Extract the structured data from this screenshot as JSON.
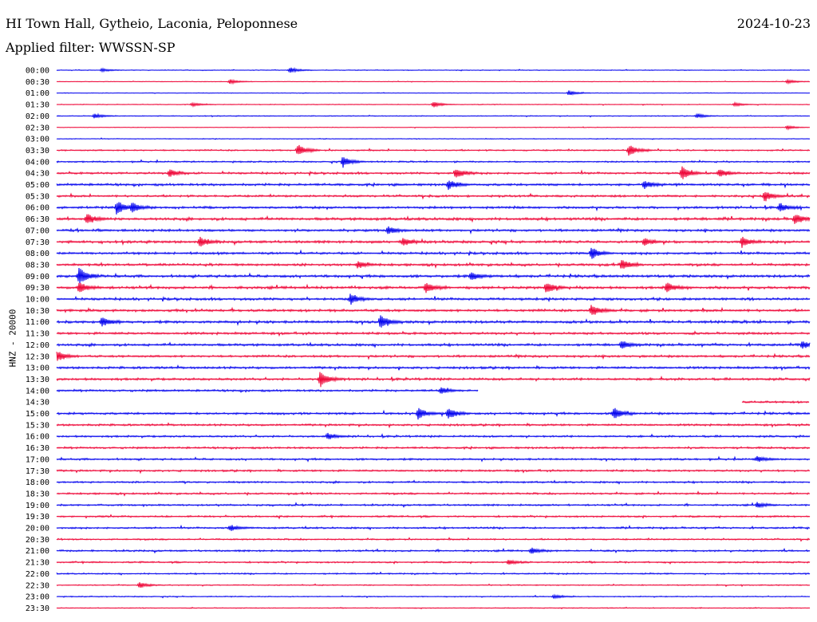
{
  "header": {
    "title": "HI Town Hall, Gytheio, Laconia, Peloponnese",
    "filter": "Applied filter: WWSSN-SP",
    "date": "2024-10-23"
  },
  "chart_data": {
    "type": "line",
    "title": "HI Town Hall, Gytheio, Laconia, Peloponnese",
    "subtitle": "Applied filter: WWSSN-SP",
    "ylabel": "HNZ - 20000",
    "xlabel": "",
    "colors": [
      "#0000ee",
      "#ee0033"
    ],
    "grid": false,
    "legend": "none",
    "rows": [
      {
        "time": "00:00",
        "color": "blue",
        "level": 0.25,
        "start": 0,
        "end": 1,
        "events": [
          [
            0.06,
            0.4
          ],
          [
            0.31,
            0.7
          ]
        ]
      },
      {
        "time": "00:30",
        "color": "red",
        "level": 0.2,
        "start": 0,
        "end": 1,
        "events": [
          [
            0.23,
            0.6
          ],
          [
            0.97,
            0.5
          ]
        ]
      },
      {
        "time": "01:00",
        "color": "blue",
        "level": 0.2,
        "start": 0,
        "end": 1,
        "events": [
          [
            0.68,
            0.6
          ]
        ]
      },
      {
        "time": "01:30",
        "color": "red",
        "level": 0.25,
        "start": 0,
        "end": 1,
        "events": [
          [
            0.18,
            0.5
          ],
          [
            0.5,
            0.7
          ],
          [
            0.9,
            0.5
          ]
        ]
      },
      {
        "time": "02:00",
        "color": "blue",
        "level": 0.3,
        "start": 0,
        "end": 1,
        "events": [
          [
            0.05,
            0.6
          ],
          [
            0.85,
            0.6
          ]
        ]
      },
      {
        "time": "02:30",
        "color": "red",
        "level": 0.2,
        "start": 0,
        "end": 1,
        "events": [
          [
            0.97,
            0.5
          ]
        ]
      },
      {
        "time": "03:00",
        "color": "blue",
        "level": 0.25,
        "start": 0,
        "end": 1,
        "events": []
      },
      {
        "time": "03:30",
        "color": "red",
        "level": 0.5,
        "start": 0,
        "end": 1,
        "events": [
          [
            0.32,
            1.6
          ],
          [
            0.76,
            1.5
          ]
        ]
      },
      {
        "time": "04:00",
        "color": "blue",
        "level": 0.5,
        "start": 0,
        "end": 1,
        "events": [
          [
            0.38,
            1.5
          ]
        ]
      },
      {
        "time": "04:30",
        "color": "red",
        "level": 0.7,
        "start": 0,
        "end": 1,
        "events": [
          [
            0.15,
            1.0
          ],
          [
            0.53,
            1.4
          ],
          [
            0.83,
            1.6
          ],
          [
            0.88,
            1.0
          ]
        ]
      },
      {
        "time": "05:00",
        "color": "blue",
        "level": 0.8,
        "start": 0,
        "end": 1,
        "events": [
          [
            0.52,
            1.3
          ],
          [
            0.78,
            1.0
          ]
        ]
      },
      {
        "time": "05:30",
        "color": "red",
        "level": 0.7,
        "start": 0,
        "end": 1,
        "events": [
          [
            0.94,
            1.3
          ]
        ]
      },
      {
        "time": "06:00",
        "color": "blue",
        "level": 0.8,
        "start": 0,
        "end": 1,
        "events": [
          [
            0.08,
            1.6
          ],
          [
            0.1,
            1.2
          ],
          [
            0.96,
            1.2
          ]
        ]
      },
      {
        "time": "06:30",
        "color": "red",
        "level": 0.9,
        "start": 0,
        "end": 1,
        "events": [
          [
            0.04,
            1.3
          ],
          [
            0.98,
            1.4
          ]
        ]
      },
      {
        "time": "07:00",
        "color": "blue",
        "level": 0.8,
        "start": 0,
        "end": 1,
        "events": [
          [
            0.44,
            1.0
          ]
        ]
      },
      {
        "time": "07:30",
        "color": "red",
        "level": 0.85,
        "start": 0,
        "end": 1,
        "events": [
          [
            0.19,
            1.2
          ],
          [
            0.46,
            1.0
          ],
          [
            0.78,
            1.0
          ],
          [
            0.91,
            1.3
          ]
        ]
      },
      {
        "time": "08:00",
        "color": "blue",
        "level": 0.8,
        "start": 0,
        "end": 1,
        "events": [
          [
            0.71,
            1.6
          ]
        ]
      },
      {
        "time": "08:30",
        "color": "red",
        "level": 0.8,
        "start": 0,
        "end": 1,
        "events": [
          [
            0.4,
            1.0
          ],
          [
            0.75,
            1.3
          ]
        ]
      },
      {
        "time": "09:00",
        "color": "blue",
        "level": 0.9,
        "start": 0,
        "end": 1,
        "events": [
          [
            0.03,
            2.2
          ],
          [
            0.55,
            1.0
          ]
        ]
      },
      {
        "time": "09:30",
        "color": "red",
        "level": 0.9,
        "start": 0,
        "end": 1,
        "events": [
          [
            0.03,
            1.3
          ],
          [
            0.49,
            1.4
          ],
          [
            0.65,
            1.4
          ],
          [
            0.81,
            1.3
          ]
        ]
      },
      {
        "time": "10:00",
        "color": "blue",
        "level": 0.85,
        "start": 0,
        "end": 1,
        "events": [
          [
            0.39,
            1.3
          ]
        ]
      },
      {
        "time": "10:30",
        "color": "red",
        "level": 0.85,
        "start": 0,
        "end": 1,
        "events": [
          [
            0.71,
            1.4
          ]
        ]
      },
      {
        "time": "11:00",
        "color": "blue",
        "level": 0.9,
        "start": 0,
        "end": 1,
        "events": [
          [
            0.06,
            1.2
          ],
          [
            0.43,
            1.8
          ]
        ]
      },
      {
        "time": "11:30",
        "color": "red",
        "level": 0.8,
        "start": 0,
        "end": 1,
        "events": []
      },
      {
        "time": "12:00",
        "color": "blue",
        "level": 0.8,
        "start": 0,
        "end": 1,
        "events": [
          [
            0.75,
            1.0
          ],
          [
            0.99,
            1.0
          ]
        ]
      },
      {
        "time": "12:30",
        "color": "red",
        "level": 0.75,
        "start": 0,
        "end": 1,
        "events": [
          [
            0.0,
            1.4
          ]
        ]
      },
      {
        "time": "13:00",
        "color": "blue",
        "level": 0.8,
        "start": 0,
        "end": 1,
        "events": []
      },
      {
        "time": "13:30",
        "color": "red",
        "level": 0.8,
        "start": 0,
        "end": 1,
        "events": [
          [
            0.35,
            2.0
          ]
        ]
      },
      {
        "time": "14:00",
        "color": "blue",
        "level": 0.7,
        "start": 0,
        "end": 0.56,
        "events": [
          [
            0.51,
            0.8
          ]
        ]
      },
      {
        "time": "14:30",
        "color": "red",
        "level": 0.7,
        "start": 0.91,
        "end": 1,
        "events": []
      },
      {
        "time": "15:00",
        "color": "blue",
        "level": 0.75,
        "start": 0,
        "end": 1,
        "events": [
          [
            0.48,
            1.4
          ],
          [
            0.52,
            1.5
          ],
          [
            0.74,
            1.5
          ]
        ]
      },
      {
        "time": "15:30",
        "color": "red",
        "level": 0.7,
        "start": 0,
        "end": 1,
        "events": []
      },
      {
        "time": "16:00",
        "color": "blue",
        "level": 0.65,
        "start": 0,
        "end": 1,
        "events": [
          [
            0.36,
            0.8
          ]
        ]
      },
      {
        "time": "16:30",
        "color": "red",
        "level": 0.65,
        "start": 0,
        "end": 1,
        "events": []
      },
      {
        "time": "17:00",
        "color": "blue",
        "level": 0.65,
        "start": 0,
        "end": 1,
        "events": [
          [
            0.93,
            0.7
          ]
        ]
      },
      {
        "time": "17:30",
        "color": "red",
        "level": 0.65,
        "start": 0,
        "end": 1,
        "events": []
      },
      {
        "time": "18:00",
        "color": "blue",
        "level": 0.6,
        "start": 0,
        "end": 1,
        "events": []
      },
      {
        "time": "18:30",
        "color": "red",
        "level": 0.6,
        "start": 0,
        "end": 1,
        "events": []
      },
      {
        "time": "19:00",
        "color": "blue",
        "level": 0.6,
        "start": 0,
        "end": 1,
        "events": [
          [
            0.93,
            0.7
          ]
        ]
      },
      {
        "time": "19:30",
        "color": "red",
        "level": 0.6,
        "start": 0,
        "end": 1,
        "events": []
      },
      {
        "time": "20:00",
        "color": "blue",
        "level": 0.6,
        "start": 0,
        "end": 1,
        "events": [
          [
            0.23,
            0.8
          ]
        ]
      },
      {
        "time": "20:30",
        "color": "red",
        "level": 0.5,
        "start": 0,
        "end": 1,
        "events": []
      },
      {
        "time": "21:00",
        "color": "blue",
        "level": 0.6,
        "start": 0,
        "end": 1,
        "events": [
          [
            0.63,
            0.8
          ]
        ]
      },
      {
        "time": "21:30",
        "color": "red",
        "level": 0.55,
        "start": 0,
        "end": 1,
        "events": [
          [
            0.6,
            0.6
          ]
        ]
      },
      {
        "time": "22:00",
        "color": "blue",
        "level": 0.45,
        "start": 0,
        "end": 1,
        "events": []
      },
      {
        "time": "22:30",
        "color": "red",
        "level": 0.35,
        "start": 0,
        "end": 1,
        "events": [
          [
            0.11,
            0.7
          ]
        ]
      },
      {
        "time": "23:00",
        "color": "blue",
        "level": 0.35,
        "start": 0,
        "end": 1,
        "events": [
          [
            0.66,
            0.5
          ]
        ]
      },
      {
        "time": "23:30",
        "color": "red",
        "level": 0.3,
        "start": 0,
        "end": 1,
        "events": []
      }
    ]
  }
}
